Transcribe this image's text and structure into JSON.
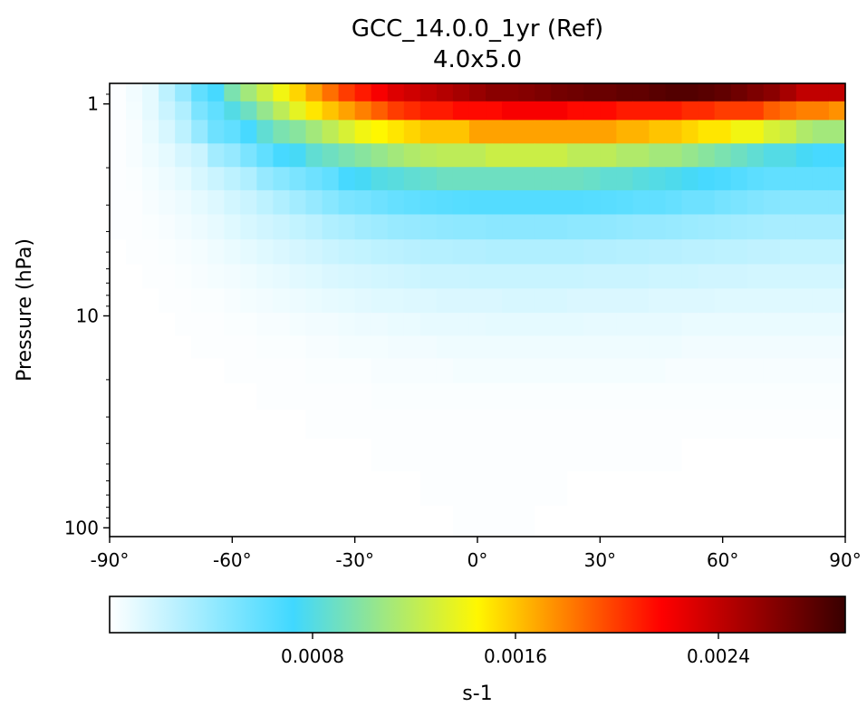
{
  "chart_data": {
    "type": "heatmap",
    "title": "GCC_14.0.0_1yr (Ref)",
    "subtitle": "4.0x5.0",
    "xlabel": "",
    "ylabel": "Pressure (hPa)",
    "y_scale": "log",
    "y_inverted": true,
    "xlim": [
      -90,
      90
    ],
    "ylim": [
      110,
      0.8
    ],
    "x_ticks": [
      -90,
      -60,
      -30,
      0,
      30,
      60,
      90
    ],
    "x_tick_labels": [
      "-90°",
      "-60°",
      "-30°",
      "0°",
      "30°",
      "60°",
      "90°"
    ],
    "y_ticks": [
      1,
      10,
      100
    ],
    "y_tick_labels": [
      "1",
      "10",
      "100"
    ],
    "colorbar": {
      "label": "s-1",
      "range": [
        0,
        0.0029
      ],
      "ticks": [
        0.0008,
        0.0016,
        0.0024
      ],
      "tick_labels": [
        "0.0008",
        "0.0016",
        "0.0024"
      ],
      "colormap": "WhGrYlRd",
      "color_stops": [
        "#ffffff",
        "#40d8ff",
        "#fff700",
        "#ff0000",
        "#380000"
      ]
    },
    "x_centers": [
      -88,
      -84,
      -80,
      -76,
      -72,
      -68,
      -64,
      -60,
      -56,
      -52,
      -48,
      -44,
      -40,
      -36,
      -32,
      -28,
      -24,
      -20,
      -16,
      -12,
      -8,
      -4,
      0,
      4,
      8,
      12,
      16,
      20,
      24,
      28,
      32,
      36,
      40,
      44,
      48,
      52,
      56,
      60,
      64,
      68,
      72,
      76,
      80,
      84,
      88
    ],
    "levels": [
      {
        "p": 0.9,
        "v": [
          1e-05,
          5e-05,
          0.0001,
          0.00025,
          0.0004,
          0.0006,
          0.0007,
          0.00095,
          0.0011,
          0.00125,
          0.0014,
          0.00155,
          0.0017,
          0.00185,
          0.002,
          0.0021,
          0.0022,
          0.0023,
          0.00235,
          0.0024,
          0.00245,
          0.0025,
          0.00255,
          0.0026,
          0.0026,
          0.00262,
          0.00265,
          0.00268,
          0.0027,
          0.00272,
          0.00272,
          0.00275,
          0.00275,
          0.00278,
          0.0028,
          0.0028,
          0.00278,
          0.00275,
          0.0027,
          0.00265,
          0.0026,
          0.0025,
          0.0024,
          0.0024,
          0.0024
        ]
      },
      {
        "p": 1.05,
        "v": [
          1e-05,
          4e-05,
          0.0001,
          0.0002,
          0.0003,
          0.0005,
          0.0006,
          0.0008,
          0.0009,
          0.00105,
          0.0012,
          0.00135,
          0.0015,
          0.0016,
          0.0017,
          0.0018,
          0.0019,
          0.002,
          0.00205,
          0.0021,
          0.0021,
          0.00215,
          0.00215,
          0.00215,
          0.0022,
          0.0022,
          0.0022,
          0.0022,
          0.00215,
          0.00215,
          0.00215,
          0.0021,
          0.0021,
          0.0021,
          0.0021,
          0.00205,
          0.00205,
          0.002,
          0.002,
          0.002,
          0.0019,
          0.00185,
          0.0018,
          0.0018,
          0.00175
        ]
      },
      {
        "p": 1.35,
        "v": [
          1e-05,
          3e-05,
          8e-05,
          0.00015,
          0.00025,
          0.0004,
          0.00055,
          0.0006,
          0.0007,
          0.00085,
          0.00095,
          0.001,
          0.0011,
          0.0012,
          0.0013,
          0.0014,
          0.00145,
          0.0015,
          0.00155,
          0.0016,
          0.0016,
          0.0016,
          0.0017,
          0.0017,
          0.0017,
          0.0017,
          0.0017,
          0.0017,
          0.0017,
          0.0017,
          0.0017,
          0.00165,
          0.00165,
          0.0016,
          0.0016,
          0.00155,
          0.0015,
          0.0015,
          0.0014,
          0.0014,
          0.0013,
          0.00125,
          0.00115,
          0.0011,
          0.0011
        ]
      },
      {
        "p": 1.75,
        "v": [
          1e-05,
          3e-05,
          6e-05,
          0.0001,
          0.00016,
          0.0002,
          0.00035,
          0.0004,
          0.0005,
          0.0006,
          0.0007,
          0.00075,
          0.00085,
          0.0009,
          0.00095,
          0.001,
          0.00105,
          0.0011,
          0.00115,
          0.00118,
          0.0012,
          0.0012,
          0.0012,
          0.00125,
          0.00125,
          0.00125,
          0.00125,
          0.00125,
          0.0012,
          0.0012,
          0.0012,
          0.00115,
          0.00115,
          0.0011,
          0.0011,
          0.00105,
          0.001,
          0.00095,
          0.0009,
          0.00085,
          0.0008,
          0.0008,
          0.00075,
          0.0007,
          0.0007
        ]
      },
      {
        "p": 2.25,
        "v": [
          1e-05,
          2e-05,
          4e-05,
          7e-05,
          0.0001,
          0.00015,
          0.0002,
          0.00025,
          0.0003,
          0.0004,
          0.00045,
          0.0005,
          0.00055,
          0.0006,
          0.0007,
          0.00075,
          0.0008,
          0.00082,
          0.00085,
          0.00087,
          0.0009,
          0.0009,
          0.0009,
          0.0009,
          0.0009,
          0.0009,
          0.0009,
          0.0009,
          0.0009,
          0.00088,
          0.00085,
          0.00085,
          0.00082,
          0.0008,
          0.00078,
          0.00075,
          0.0007,
          0.00068,
          0.00065,
          0.00062,
          0.0006,
          0.0006,
          0.0006,
          0.0006,
          0.0006
        ]
      },
      {
        "p": 2.9,
        "v": [
          1e-05,
          1e-05,
          3e-05,
          5e-05,
          7e-05,
          0.0001,
          0.00013,
          0.00017,
          0.0002,
          0.00025,
          0.0003,
          0.00035,
          0.0004,
          0.00045,
          0.0005,
          0.00052,
          0.00055,
          0.00058,
          0.0006,
          0.00062,
          0.00063,
          0.00064,
          0.00065,
          0.00065,
          0.00065,
          0.00065,
          0.00065,
          0.00065,
          0.00065,
          0.00064,
          0.00063,
          0.00062,
          0.0006,
          0.0006,
          0.00058,
          0.00055,
          0.00055,
          0.00052,
          0.0005,
          0.00048,
          0.00046,
          0.00045,
          0.00045,
          0.00045,
          0.00045
        ]
      },
      {
        "p": 3.8,
        "v": [
          1e-05,
          1e-05,
          2e-05,
          3e-05,
          5e-05,
          7e-05,
          9e-05,
          0.00012,
          0.00015,
          0.00018,
          0.0002,
          0.00023,
          0.00026,
          0.0003,
          0.00032,
          0.00035,
          0.00037,
          0.00039,
          0.0004,
          0.00041,
          0.00042,
          0.00043,
          0.00043,
          0.00044,
          0.00044,
          0.00044,
          0.00044,
          0.00044,
          0.00043,
          0.00043,
          0.00042,
          0.00041,
          0.0004,
          0.0004,
          0.00039,
          0.00038,
          0.00037,
          0.00036,
          0.00035,
          0.00034,
          0.00033,
          0.00033,
          0.00033,
          0.00033,
          0.00033
        ]
      },
      {
        "p": 5.0,
        "v": [
          0.0,
          1e-05,
          1e-05,
          2e-05,
          3e-05,
          4e-05,
          6e-05,
          8e-05,
          0.0001,
          0.00012,
          0.00014,
          0.00016,
          0.00018,
          0.0002,
          0.00022,
          0.00023,
          0.00025,
          0.00026,
          0.00027,
          0.00028,
          0.00028,
          0.00029,
          0.00029,
          0.0003,
          0.0003,
          0.0003,
          0.0003,
          0.0003,
          0.0003,
          0.00029,
          0.00029,
          0.00028,
          0.00028,
          0.00027,
          0.00027,
          0.00026,
          0.00026,
          0.00025,
          0.00025,
          0.00024,
          0.00024,
          0.00023,
          0.00023,
          0.00023,
          0.00023
        ]
      },
      {
        "p": 6.5,
        "v": [
          0.0,
          0.0,
          1e-05,
          1e-05,
          2e-05,
          3e-05,
          4e-05,
          5e-05,
          6e-05,
          8e-05,
          9e-05,
          0.00011,
          0.00012,
          0.00014,
          0.00015,
          0.00016,
          0.00017,
          0.00018,
          0.00019,
          0.0002,
          0.0002,
          0.0002,
          0.00021,
          0.00021,
          0.00021,
          0.00021,
          0.00021,
          0.00021,
          0.00021,
          0.0002,
          0.0002,
          0.0002,
          0.0002,
          0.00019,
          0.00019,
          0.00019,
          0.00018,
          0.00018,
          0.00018,
          0.00017,
          0.00017,
          0.00017,
          0.00017,
          0.00017,
          0.00017
        ]
      },
      {
        "p": 8.5,
        "v": [
          0.0,
          0.0,
          0.0,
          1e-05,
          1e-05,
          2e-05,
          2e-05,
          3e-05,
          4e-05,
          5e-05,
          6e-05,
          7e-05,
          8e-05,
          9e-05,
          0.0001,
          0.00011,
          0.00012,
          0.00012,
          0.00013,
          0.00013,
          0.00014,
          0.00014,
          0.00014,
          0.00014,
          0.00015,
          0.00015,
          0.00015,
          0.00015,
          0.00014,
          0.00014,
          0.00014,
          0.00014,
          0.00014,
          0.00013,
          0.00013,
          0.00013,
          0.00013,
          0.00012,
          0.00012,
          0.00012,
          0.00012,
          0.00012,
          0.00012,
          0.00012,
          0.00012
        ]
      },
      {
        "p": 11.0,
        "v": [
          0.0,
          0.0,
          0.0,
          0.0,
          1e-05,
          1e-05,
          1e-05,
          2e-05,
          2e-05,
          3e-05,
          3e-05,
          4e-05,
          5e-05,
          5e-05,
          6e-05,
          7e-05,
          7e-05,
          8e-05,
          8e-05,
          9e-05,
          9e-05,
          9e-05,
          9e-05,
          0.0001,
          0.0001,
          0.0001,
          0.0001,
          0.0001,
          0.0001,
          9e-05,
          9e-05,
          9e-05,
          9e-05,
          9e-05,
          9e-05,
          8e-05,
          8e-05,
          8e-05,
          8e-05,
          8e-05,
          8e-05,
          8e-05,
          8e-05,
          8e-05,
          8e-05
        ]
      },
      {
        "p": 14.0,
        "v": [
          0.0,
          0.0,
          0.0,
          0.0,
          0.0,
          1e-05,
          1e-05,
          1e-05,
          1e-05,
          2e-05,
          2e-05,
          2e-05,
          3e-05,
          3e-05,
          4e-05,
          4e-05,
          4e-05,
          5e-05,
          5e-05,
          5e-05,
          6e-05,
          6e-05,
          6e-05,
          6e-05,
          6e-05,
          6e-05,
          6e-05,
          6e-05,
          6e-05,
          6e-05,
          6e-05,
          6e-05,
          6e-05,
          6e-05,
          6e-05,
          5e-05,
          5e-05,
          5e-05,
          5e-05,
          5e-05,
          5e-05,
          5e-05,
          5e-05,
          5e-05,
          5e-05
        ]
      },
      {
        "p": 18.0,
        "v": [
          0.0,
          0.0,
          0.0,
          0.0,
          0.0,
          0.0,
          0.0,
          1e-05,
          1e-05,
          1e-05,
          1e-05,
          1e-05,
          2e-05,
          2e-05,
          2e-05,
          2e-05,
          3e-05,
          3e-05,
          3e-05,
          3e-05,
          3e-05,
          4e-05,
          4e-05,
          4e-05,
          4e-05,
          4e-05,
          4e-05,
          4e-05,
          4e-05,
          4e-05,
          4e-05,
          4e-05,
          4e-05,
          4e-05,
          3e-05,
          3e-05,
          3e-05,
          3e-05,
          3e-05,
          3e-05,
          3e-05,
          3e-05,
          3e-05,
          3e-05,
          3e-05
        ]
      },
      {
        "p": 24.0,
        "v": [
          0.0,
          0.0,
          0.0,
          0.0,
          0.0,
          0.0,
          0.0,
          0.0,
          0.0,
          1e-05,
          1e-05,
          1e-05,
          1e-05,
          1e-05,
          1e-05,
          1e-05,
          2e-05,
          2e-05,
          2e-05,
          2e-05,
          2e-05,
          2e-05,
          2e-05,
          2e-05,
          2e-05,
          2e-05,
          2e-05,
          2e-05,
          2e-05,
          2e-05,
          2e-05,
          2e-05,
          2e-05,
          2e-05,
          2e-05,
          2e-05,
          2e-05,
          2e-05,
          2e-05,
          2e-05,
          2e-05,
          2e-05,
          2e-05,
          2e-05,
          2e-05
        ]
      },
      {
        "p": 32.0,
        "v": [
          0.0,
          0.0,
          0.0,
          0.0,
          0.0,
          0.0,
          0.0,
          0.0,
          0.0,
          0.0,
          0.0,
          0.0,
          1e-05,
          1e-05,
          1e-05,
          1e-05,
          1e-05,
          1e-05,
          1e-05,
          1e-05,
          1e-05,
          1e-05,
          1e-05,
          1e-05,
          1e-05,
          1e-05,
          1e-05,
          1e-05,
          1e-05,
          1e-05,
          1e-05,
          1e-05,
          1e-05,
          1e-05,
          1e-05,
          1e-05,
          1e-05,
          1e-05,
          1e-05,
          1e-05,
          1e-05,
          1e-05,
          1e-05,
          1e-05,
          1e-05
        ]
      },
      {
        "p": 45.0,
        "v": [
          0.0,
          0.0,
          0.0,
          0.0,
          0.0,
          0.0,
          0.0,
          0.0,
          0.0,
          0.0,
          0.0,
          0.0,
          0.0,
          0.0,
          0.0,
          0.0,
          1e-05,
          1e-05,
          1e-05,
          1e-05,
          1e-05,
          1e-05,
          1e-05,
          1e-05,
          1e-05,
          1e-05,
          1e-05,
          1e-05,
          1e-05,
          1e-05,
          1e-05,
          1e-05,
          1e-05,
          1e-05,
          1e-05,
          0.0,
          0.0,
          0.0,
          0.0,
          0.0,
          0.0,
          0.0,
          0.0,
          0.0,
          0.0
        ]
      },
      {
        "p": 65.0,
        "v": [
          0.0,
          0.0,
          0.0,
          0.0,
          0.0,
          0.0,
          0.0,
          0.0,
          0.0,
          0.0,
          0.0,
          0.0,
          0.0,
          0.0,
          0.0,
          0.0,
          0.0,
          0.0,
          0.0,
          1e-05,
          1e-05,
          1e-05,
          1e-05,
          1e-05,
          1e-05,
          1e-05,
          1e-05,
          1e-05,
          0.0,
          0.0,
          0.0,
          0.0,
          0.0,
          0.0,
          0.0,
          0.0,
          0.0,
          0.0,
          0.0,
          0.0,
          0.0,
          0.0,
          0.0,
          0.0,
          0.0
        ]
      },
      {
        "p": 95.0,
        "v": [
          0.0,
          0.0,
          0.0,
          0.0,
          0.0,
          0.0,
          0.0,
          0.0,
          0.0,
          0.0,
          0.0,
          0.0,
          0.0,
          0.0,
          0.0,
          0.0,
          0.0,
          0.0,
          0.0,
          0.0,
          0.0,
          1e-05,
          1e-05,
          1e-05,
          1e-05,
          1e-05,
          0.0,
          0.0,
          0.0,
          0.0,
          0.0,
          0.0,
          0.0,
          0.0,
          0.0,
          0.0,
          0.0,
          0.0,
          0.0,
          0.0,
          0.0,
          0.0,
          0.0,
          0.0,
          0.0
        ]
      }
    ]
  }
}
